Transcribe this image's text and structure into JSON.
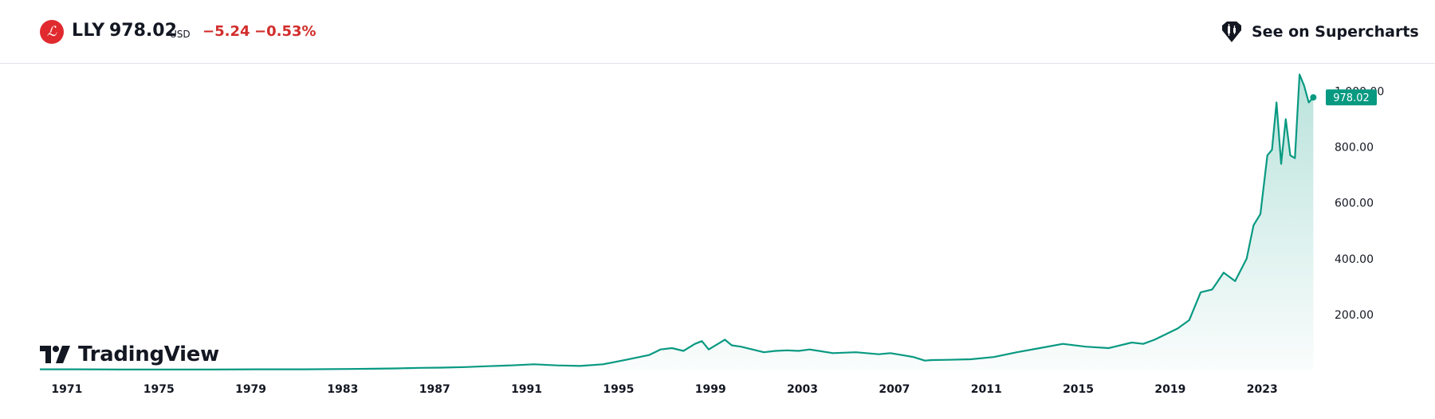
{
  "header": {
    "symbol": "LLY",
    "price": "978.02",
    "currency": "USD",
    "change": "−5.24",
    "change_pct": "−0.53%",
    "logo_letter": "ℒ",
    "supercharts_label": "See on Supercharts"
  },
  "brand": {
    "name": "TradingView"
  },
  "colors": {
    "line": "#089981",
    "down": "#d12d2b",
    "logo_bg": "#e02a2f"
  },
  "chart_data": {
    "type": "area",
    "title": "",
    "xlabel": "",
    "ylabel": "",
    "last_price_label": "978.02",
    "y_tick_labels": [
      "200.00",
      "400.00",
      "600.00",
      "800.00",
      "1,000.00"
    ],
    "x_tick_labels": [
      "1971",
      "1975",
      "1979",
      "1983",
      "1987",
      "1991",
      "1995",
      "1999",
      "2003",
      "2007",
      "2011",
      "2015",
      "2019",
      "2023"
    ],
    "xlim": [
      1970.5,
      2026.2
    ],
    "ylim": [
      0,
      1070
    ],
    "grid": false,
    "x": [
      1970.5,
      1972,
      1974,
      1976,
      1978,
      1980,
      1982,
      1984,
      1985,
      1986,
      1987,
      1988,
      1989,
      1990,
      1991,
      1992,
      1993,
      1994,
      1995,
      1996,
      1997,
      1997.5,
      1998,
      1998.5,
      1999,
      1999.3,
      1999.6,
      2000,
      2000.3,
      2000.6,
      2001,
      2001.5,
      2002,
      2002.5,
      2003,
      2003.5,
      2004,
      2005,
      2006,
      2007,
      2007.5,
      2008,
      2008.5,
      2009,
      2009.3,
      2010,
      2011,
      2012,
      2013,
      2014,
      2015,
      2016,
      2017,
      2018,
      2018.5,
      2019,
      2019.5,
      2020,
      2020.5,
      2021,
      2021.5,
      2022,
      2022.5,
      2023,
      2023.3,
      2023.6,
      2023.9,
      2024.1,
      2024.3,
      2024.5,
      2024.7,
      2024.9,
      2025.1,
      2025.3,
      2025.5,
      2025.7,
      2025.9
    ],
    "y": [
      4,
      4,
      3,
      3,
      3,
      4,
      4,
      5,
      6,
      7,
      9,
      10,
      12,
      15,
      18,
      22,
      18,
      16,
      22,
      38,
      55,
      75,
      80,
      70,
      95,
      105,
      75,
      95,
      110,
      90,
      85,
      75,
      65,
      70,
      72,
      70,
      75,
      62,
      65,
      58,
      62,
      55,
      48,
      35,
      37,
      38,
      40,
      48,
      65,
      80,
      95,
      85,
      80,
      100,
      95,
      110,
      130,
      150,
      180,
      280,
      290,
      350,
      320,
      400,
      520,
      560,
      770,
      790,
      960,
      740,
      900,
      770,
      760,
      1060,
      1020,
      960,
      978
    ]
  }
}
